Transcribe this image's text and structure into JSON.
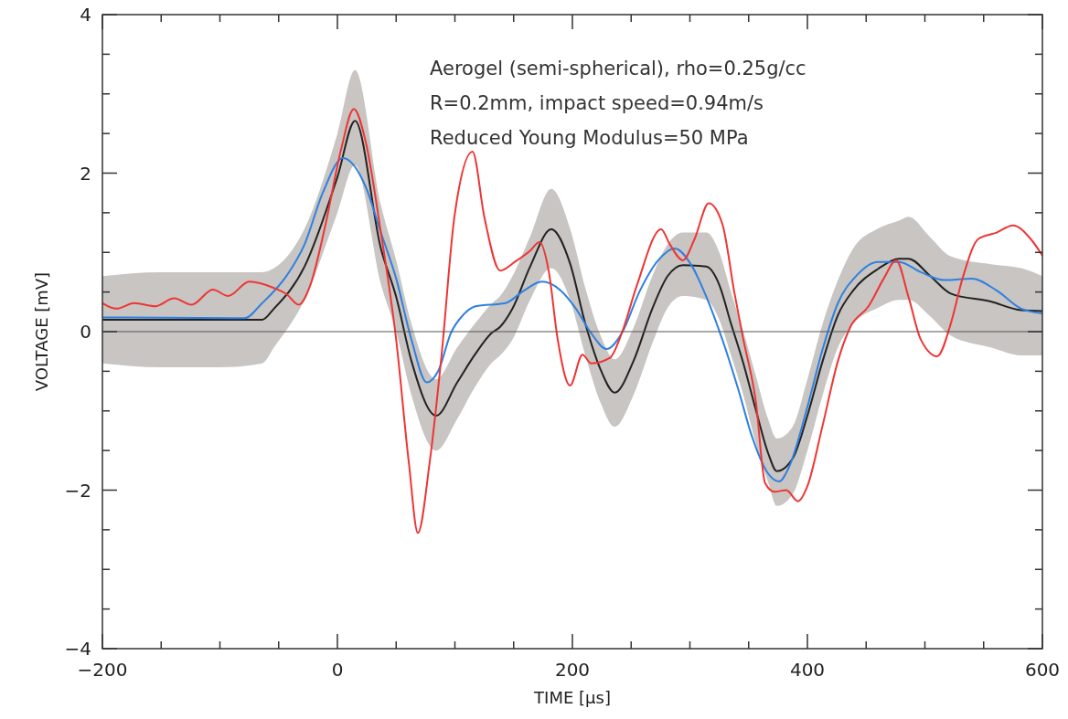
{
  "chart_data": {
    "type": "line",
    "xlabel": "TIME [μs]",
    "ylabel": "VOLTAGE [mV]",
    "xlim": [
      -200,
      600
    ],
    "ylim": [
      -4,
      4
    ],
    "xticks": [
      -200,
      {
        "value": -150,
        "label": null
      },
      {
        "value": -100,
        "label": null
      },
      {
        "value": -50,
        "label": null
      },
      0,
      {
        "value": 50,
        "label": null
      },
      {
        "value": 100,
        "label": null
      },
      {
        "value": 150,
        "label": null
      },
      200,
      {
        "value": 250,
        "label": null
      },
      {
        "value": 300,
        "label": null
      },
      {
        "value": 350,
        "label": null
      },
      400,
      {
        "value": 450,
        "label": null
      },
      {
        "value": 500,
        "label": null
      },
      {
        "value": 550,
        "label": null
      },
      600
    ],
    "yticks": [
      -4,
      {
        "value": -3.5,
        "label": null
      },
      {
        "value": -3,
        "label": null
      },
      {
        "value": -2.5,
        "label": null
      },
      -2,
      {
        "value": -1.5,
        "label": null
      },
      {
        "value": -1,
        "label": null
      },
      {
        "value": -0.5,
        "label": null
      },
      0,
      {
        "value": 0.5,
        "label": null
      },
      {
        "value": 1,
        "label": null
      },
      {
        "value": 1.5,
        "label": null
      },
      2,
      {
        "value": 2.5,
        "label": null
      },
      {
        "value": 3,
        "label": null
      },
      {
        "value": 3.5,
        "label": null
      },
      4
    ],
    "grid": false,
    "marker": "none",
    "line_style": "solid",
    "ref_lines": [
      {
        "axis": "y",
        "value": 0,
        "color": "#555555"
      }
    ],
    "annotations": [
      "Aerogel (semi-spherical), rho=0.25g/cc",
      "R=0.2mm, impact speed=0.94m/s",
      "Reduced Young Modulus=50 MPa"
    ],
    "series": [
      {
        "color": "#222222",
        "x": [
          -200,
          -150,
          -100,
          -64,
          -54,
          -28,
          0,
          15,
          37,
          50,
          63,
          84,
          102,
          117,
          131,
          138.5,
          149,
          164,
          182,
          198,
          211,
          224,
          236,
          252,
          268,
          281,
          294,
          314,
          325,
          335,
          345.5,
          356,
          366.5,
          374,
          387.5,
          400,
          413,
          426,
          439,
          460,
          478,
          486,
          504,
          522,
          556,
          582,
          600
        ],
        "values": [
          0.15,
          0.15,
          0.15,
          0.15,
          0.29,
          0.82,
          1.95,
          2.66,
          1.05,
          0.44,
          -0.37,
          -1.06,
          -0.64,
          -0.29,
          -0.02,
          0.06,
          0.29,
          0.82,
          1.29,
          0.86,
          0.1,
          -0.48,
          -0.77,
          -0.37,
          0.29,
          0.7,
          0.84,
          0.82,
          0.59,
          0.1,
          -0.4,
          -0.98,
          -1.53,
          -1.76,
          -1.6,
          -1.06,
          -0.37,
          0.21,
          0.52,
          0.79,
          0.92,
          0.92,
          0.71,
          0.48,
          0.38,
          0.27,
          0.26
        ],
        "lower": [
          -0.4,
          -0.45,
          -0.45,
          -0.4,
          -0.2,
          0.4,
          1.5,
          2.1,
          0.6,
          0,
          -0.8,
          -1.5,
          -1.1,
          -0.7,
          -0.4,
          -0.3,
          -0.1,
          0.4,
          0.8,
          0.4,
          -0.3,
          -0.9,
          -1.2,
          -0.8,
          -0.15,
          0.3,
          0.45,
          0.4,
          0.15,
          -0.3,
          -0.8,
          -1.4,
          -1.9,
          -2.2,
          -2.05,
          -1.5,
          -0.8,
          -0.2,
          0.1,
          0.3,
          0.4,
          0.4,
          0.2,
          -0.05,
          -0.2,
          -0.3,
          -0.3
        ],
        "upper": [
          0.7,
          0.75,
          0.75,
          0.75,
          0.8,
          1.3,
          2.5,
          3.3,
          1.6,
          0.9,
          0.1,
          -0.6,
          -0.2,
          0.1,
          0.35,
          0.45,
          0.7,
          1.2,
          1.8,
          1.3,
          0.55,
          -0.05,
          -0.35,
          0.05,
          0.7,
          1.1,
          1.25,
          1.25,
          1,
          0.5,
          0,
          -0.55,
          -1.1,
          -1.35,
          -1.2,
          -0.6,
          0.1,
          0.65,
          1.05,
          1.3,
          1.4,
          1.45,
          1.2,
          0.95,
          0.85,
          0.8,
          0.7
        ]
      },
      {
        "color": "#2f80e0",
        "x": [
          -200,
          -79,
          -64,
          -43,
          -28,
          -12.5,
          4.7,
          24,
          37,
          50,
          63,
          76,
          86,
          96.5,
          107,
          117.5,
          143,
          159,
          174,
          190,
          203,
          216,
          229,
          242,
          257.6,
          273,
          287,
          302,
          314,
          327.6,
          341,
          353,
          366.5,
          376,
          384,
          400,
          413,
          426,
          442,
          460,
          478,
          496.5,
          517,
          540,
          561,
          582,
          600
        ],
        "values": [
          0.18,
          0.17,
          0.36,
          0.71,
          1.1,
          1.75,
          2.19,
          1.83,
          1.25,
          0.67,
          -0.1,
          -0.64,
          -0.49,
          -0.02,
          0.21,
          0.32,
          0.36,
          0.52,
          0.63,
          0.52,
          0.29,
          -0.02,
          -0.22,
          -0.02,
          0.52,
          0.9,
          1.05,
          0.82,
          0.44,
          -0.1,
          -0.72,
          -1.33,
          -1.79,
          -1.89,
          -1.72,
          -0.95,
          -0.22,
          0.36,
          0.71,
          0.88,
          0.88,
          0.75,
          0.65,
          0.67,
          0.52,
          0.29,
          0.23
        ]
      },
      {
        "color": "#ee3535",
        "x": [
          -200,
          -188,
          -173,
          -155,
          -139,
          -124,
          -106,
          -93,
          -75,
          -54,
          -43,
          -33,
          -23,
          -10,
          3,
          14,
          24,
          37,
          50,
          60.7,
          68.5,
          78.6,
          88.7,
          99.6,
          115,
          125,
          138.5,
          151,
          164,
          172,
          180,
          187.5,
          198,
          208.6,
          216,
          232,
          242,
          255,
          275.5,
          283,
          294,
          304,
          316,
          327.6,
          338,
          345.5,
          356,
          364,
          372,
          382,
          392,
          400,
          413,
          426,
          436.6,
          452,
          465,
          475.5,
          486,
          496.5,
          510.5,
          522,
          532,
          545.5,
          561,
          575,
          590,
          600
        ],
        "values": [
          0.36,
          0.29,
          0.36,
          0.32,
          0.42,
          0.34,
          0.53,
          0.45,
          0.63,
          0.55,
          0.47,
          0.34,
          0.59,
          1.36,
          2.29,
          2.81,
          2.4,
          1.25,
          -0.1,
          -1.64,
          -2.54,
          -1.64,
          -0.29,
          1.45,
          2.27,
          1.45,
          0.77,
          0.88,
          1.02,
          1.13,
          0.75,
          -0.1,
          -0.68,
          -0.29,
          -0.4,
          -0.33,
          -0.02,
          0.59,
          1.29,
          1.1,
          0.9,
          1.17,
          1.62,
          1.36,
          0.48,
          -0.1,
          -0.87,
          -1.91,
          -2.02,
          -2,
          -2.14,
          -1.95,
          -1.18,
          -0.37,
          0.06,
          0.32,
          0.67,
          0.9,
          0.44,
          -0.1,
          -0.31,
          0.1,
          0.67,
          1.17,
          1.25,
          1.34,
          1.17,
          0.96
        ]
      }
    ]
  }
}
